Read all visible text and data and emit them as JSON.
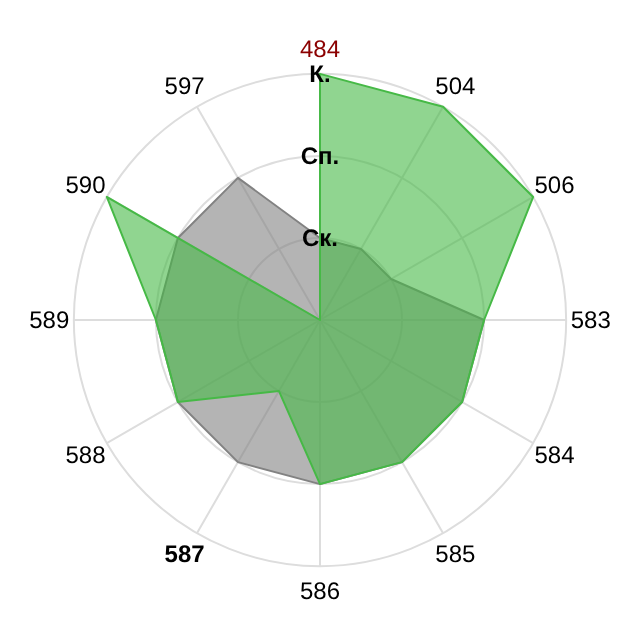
{
  "chart_data": {
    "type": "radar",
    "categories": [
      "484",
      "504",
      "506",
      "583",
      "584",
      "585",
      "586",
      "587",
      "588",
      "589",
      "590",
      "597"
    ],
    "series": [
      {
        "color": "#828282",
        "values": [
          1,
          1,
          1,
          2,
          2,
          2,
          2,
          2,
          2,
          2,
          2,
          2
        ]
      },
      {
        "color": "#46b946",
        "values": [
          3,
          3,
          3,
          2,
          2,
          2,
          2,
          1,
          2,
          2,
          3,
          0
        ]
      }
    ],
    "ylim": [
      0,
      3
    ],
    "yticks": [
      {
        "value": 1,
        "label": "Ск."
      },
      {
        "value": 2,
        "label": "Сп."
      },
      {
        "value": 3,
        "label": "К."
      }
    ],
    "grid": true
  }
}
